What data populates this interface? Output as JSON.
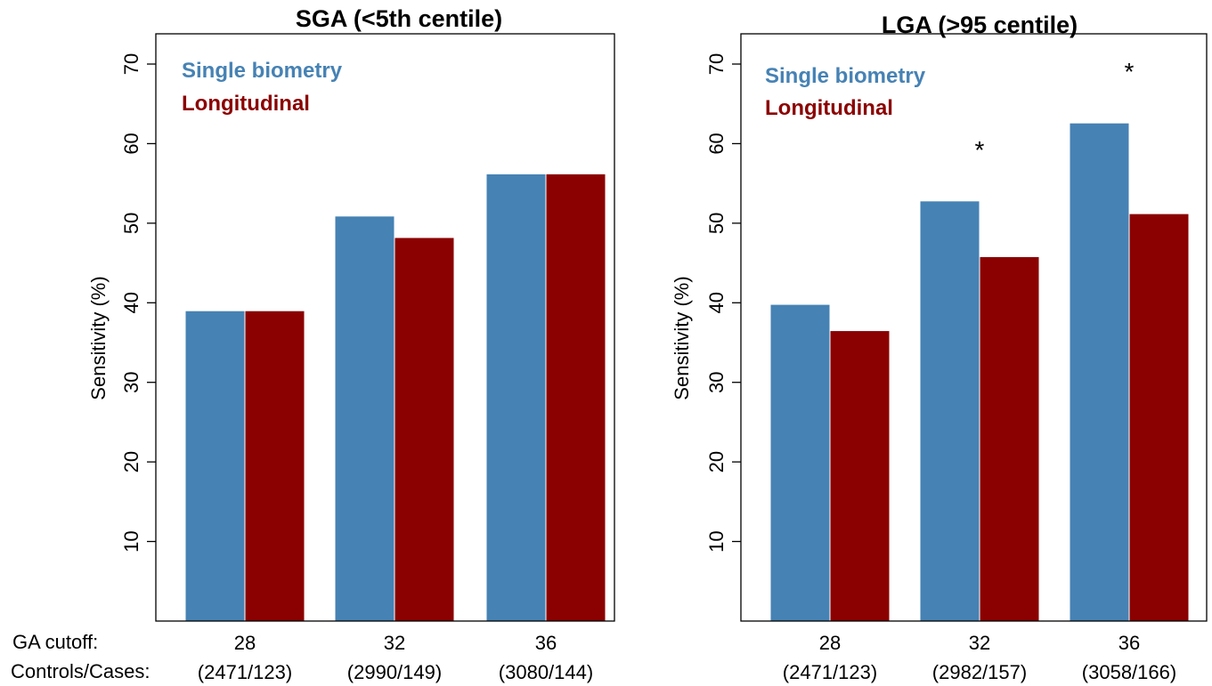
{
  "row_labels": {
    "ga_cutoff": "GA cutoff:",
    "controls_cases": "Controls/Cases:"
  },
  "colors": {
    "single": "#4682b4",
    "longitudinal": "#8b0000"
  },
  "chart_data": [
    {
      "type": "bar",
      "title": "SGA (<5th centile)",
      "xlabel": "",
      "ylabel": "Sensitivity (%)",
      "ylim": [
        0,
        70
      ],
      "yticks": [
        10,
        20,
        30,
        40,
        50,
        60,
        70
      ],
      "categories": [
        "28",
        "32",
        "36"
      ],
      "sublabels": [
        "(2471/123)",
        "(2990/149)",
        "(3080/144)"
      ],
      "series": [
        {
          "name": "Single biometry",
          "color": "#4682b4",
          "values": [
            39.0,
            50.9,
            56.2
          ]
        },
        {
          "name": "Longitudinal",
          "color": "#8b0000",
          "values": [
            39.0,
            48.2,
            56.2
          ]
        }
      ],
      "annotations": [],
      "legend": "top-left",
      "grid": false
    },
    {
      "type": "bar",
      "title": "LGA (>95 centile)",
      "xlabel": "",
      "ylabel": "Sensitivity (%)",
      "ylim": [
        0,
        70
      ],
      "yticks": [
        10,
        20,
        30,
        40,
        50,
        60,
        70
      ],
      "categories": [
        "28",
        "32",
        "36"
      ],
      "sublabels": [
        "(2471/123)",
        "(2982/157)",
        "(3058/166)"
      ],
      "series": [
        {
          "name": "Single biometry",
          "color": "#4682b4",
          "values": [
            39.8,
            52.8,
            62.6
          ]
        },
        {
          "name": "Longitudinal",
          "color": "#8b0000",
          "values": [
            36.5,
            45.8,
            51.2
          ]
        }
      ],
      "annotations": [
        {
          "text": "*",
          "category_index": 1
        },
        {
          "text": "*",
          "category_index": 2
        }
      ],
      "legend": "top-left",
      "grid": false
    }
  ]
}
